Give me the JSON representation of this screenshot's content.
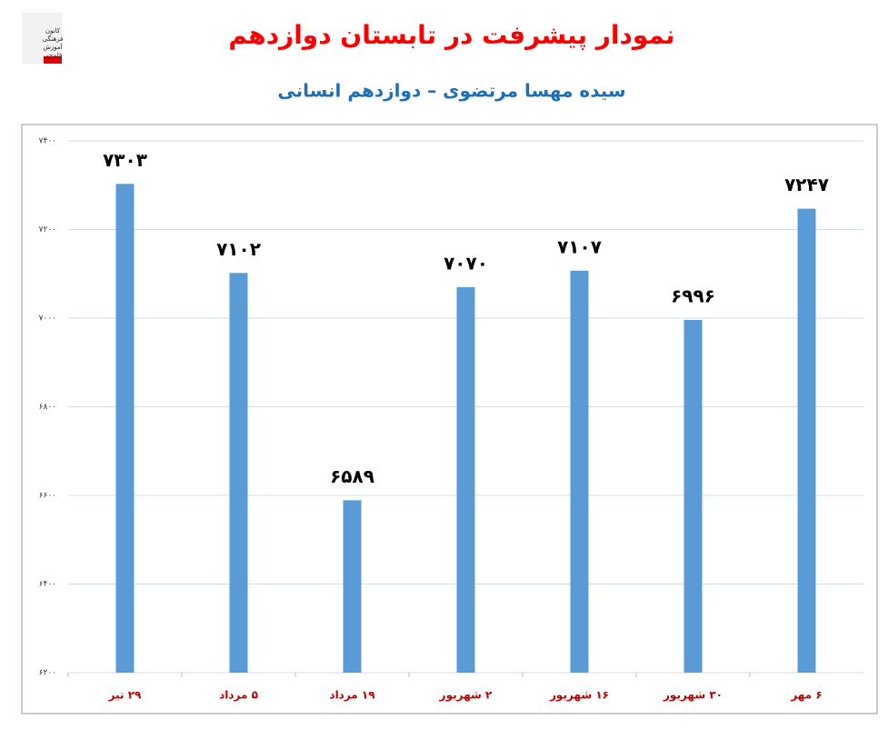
{
  "logo": [
    "کانون",
    "فرهنگی",
    "آموزش",
    "قلم‌چی"
  ],
  "chart_data": {
    "type": "bar",
    "title": "نمودار پیشرفت در تابستان دوازدهم",
    "subtitle": "سیده مهسا مرتضوی – دوازدهم انسانی",
    "categories": [
      "۲۹ تیر",
      "۵ مرداد",
      "۱۹ مرداد",
      "۲ شهریور",
      "۱۶ شهریور",
      "۳۰ شهریور",
      "۶ مهر"
    ],
    "values": [
      7303,
      7102,
      6589,
      7070,
      7107,
      6996,
      7247
    ],
    "value_labels": [
      "۷۳۰۳",
      "۷۱۰۲",
      "۶۵۸۹",
      "۷۰۷۰",
      "۷۱۰۷",
      "۶۹۹۶",
      "۷۲۴۷"
    ],
    "color": "#5b9bd5",
    "ylim": [
      6200,
      7400
    ],
    "yticks": [
      {
        "value": 6200,
        "label": "۶۲۰۰"
      },
      {
        "value": 6400,
        "label": "۶۴۰۰"
      },
      {
        "value": 6600,
        "label": "۶۶۰۰"
      },
      {
        "value": 6800,
        "label": "۶۸۰۰"
      },
      {
        "value": 7000,
        "label": "۷۰۰۰"
      },
      {
        "value": 7200,
        "label": "۷۲۰۰"
      },
      {
        "value": 7400,
        "label": "۷۴۰۰"
      }
    ],
    "grid": true
  }
}
